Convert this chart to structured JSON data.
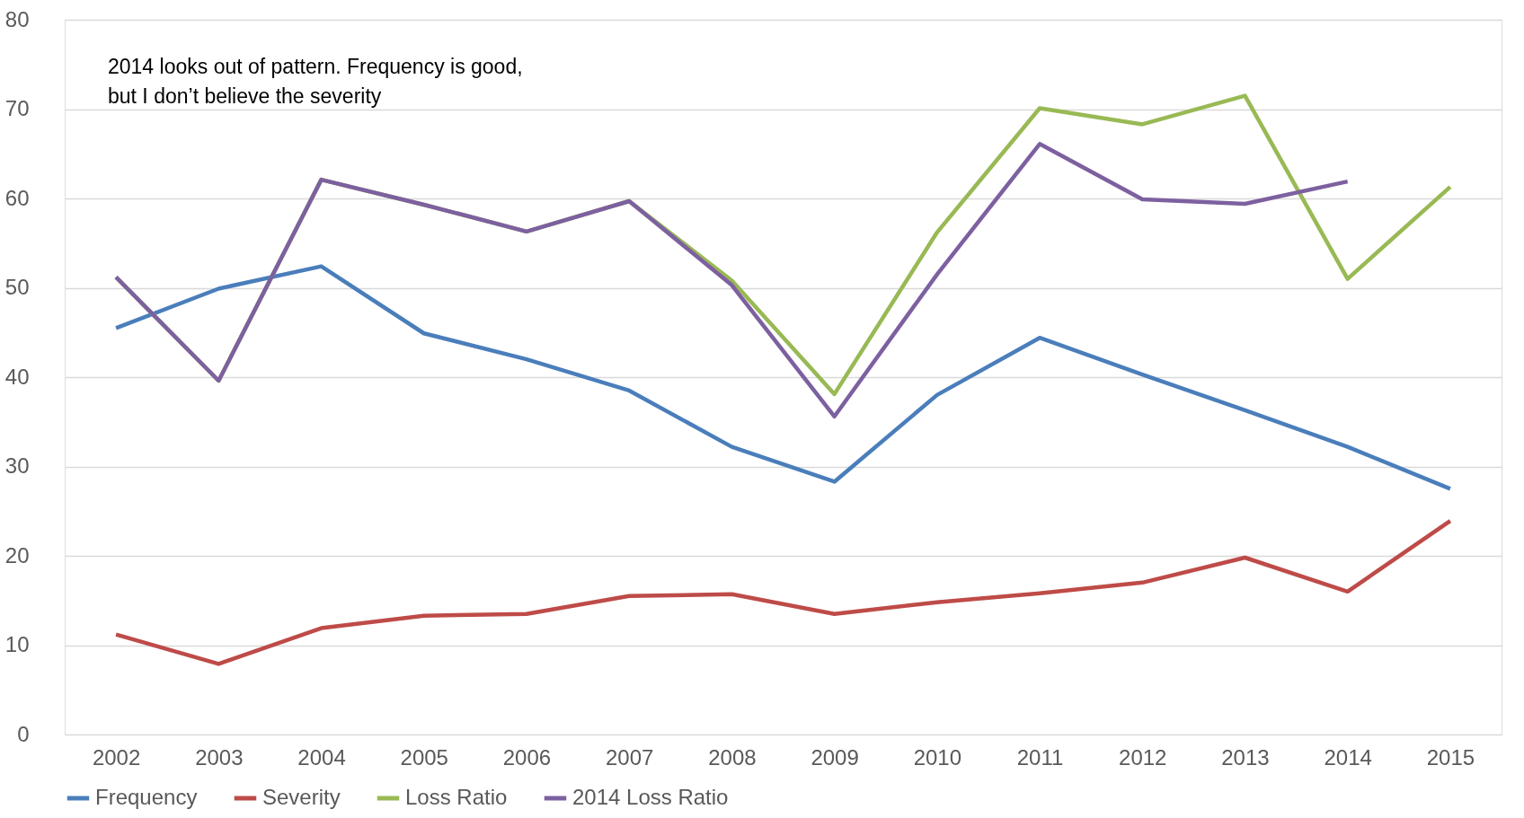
{
  "chart_data": {
    "type": "line",
    "categories": [
      "2002",
      "2003",
      "2004",
      "2005",
      "2006",
      "2007",
      "2008",
      "2009",
      "2010",
      "2011",
      "2012",
      "2013",
      "2014",
      "2015"
    ],
    "series": [
      {
        "name": "Frequency",
        "color": "#4a7ebb",
        "values": [
          45.5,
          49.9,
          52.4,
          44.9,
          42.0,
          38.5,
          32.2,
          28.3,
          38.0,
          44.4,
          40.3,
          36.3,
          32.2,
          27.5
        ]
      },
      {
        "name": "Severity",
        "color": "#be4b48",
        "values": [
          11.2,
          7.9,
          11.9,
          13.3,
          13.5,
          15.5,
          15.7,
          13.5,
          14.8,
          15.8,
          17.0,
          19.8,
          16.0,
          23.9
        ]
      },
      {
        "name": "Loss Ratio",
        "color": "#98b954",
        "values": [
          51.2,
          39.6,
          62.1,
          59.3,
          56.3,
          59.7,
          50.8,
          38.1,
          56.2,
          70.1,
          68.3,
          71.5,
          51.0,
          61.3
        ]
      },
      {
        "name": "2014 Loss Ratio",
        "color": "#7d60a0",
        "values": [
          51.2,
          39.6,
          62.1,
          59.3,
          56.3,
          59.7,
          50.3,
          35.6,
          51.5,
          66.1,
          59.9,
          59.4,
          61.9,
          null
        ]
      }
    ],
    "ylim": [
      0,
      80
    ],
    "yticks": [
      0,
      10,
      20,
      30,
      40,
      50,
      60,
      70,
      80
    ],
    "grid": "y",
    "legend": "bottom",
    "marker": "none",
    "line_style": "solid",
    "annotations": [
      "2014 looks out of pattern. Frequency is good,",
      "but I don’t believe the severity"
    ]
  }
}
